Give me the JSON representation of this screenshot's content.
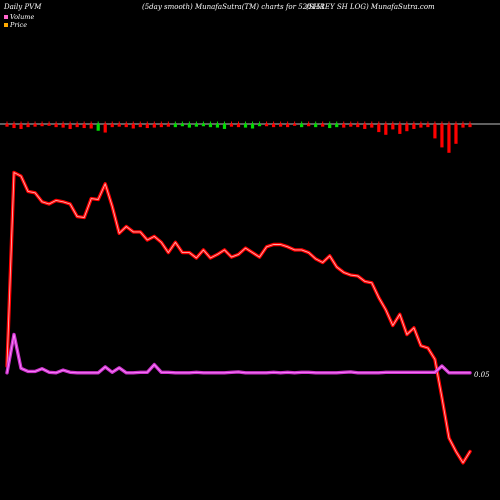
{
  "header": {
    "left": "Daily PVM",
    "center": "(5day smooth) MunafaSutra(TM) charts for 520151",
    "right": "(SHREY SH LOG) MunafaSutra.com"
  },
  "legend": [
    {
      "label": "Volume",
      "color": "#ff66cc"
    },
    {
      "label": "Price",
      "color": "#ffaa00"
    }
  ],
  "colors": {
    "background": "#000000",
    "price_line": "#ff0000",
    "price_glow": "#ffaaaa",
    "pvm_line": "#cc33cc",
    "pvm_glow": "#ff88ff",
    "volume_down": "#ff0000",
    "volume_up": "#00dd00",
    "baseline": "#ffffff"
  },
  "chart_data": {
    "type": "line",
    "x_count": 67,
    "price_label": "0.05",
    "series": [
      {
        "values": [
          2.0,
          45.0,
          44.2,
          40.8,
          40.5,
          38.5,
          38.0,
          38.8,
          38.5,
          38.0,
          35.2,
          35.0,
          39.2,
          39.0,
          42.5,
          37.5,
          31.5,
          33.0,
          31.8,
          31.8,
          30.0,
          30.8,
          29.5,
          27.2,
          29.5,
          27.2,
          27.2,
          26.0,
          27.8,
          26.0,
          26.8,
          27.8,
          26.2,
          26.8,
          28.2,
          27.2,
          26.2,
          28.5,
          29.0,
          29.0,
          28.5,
          27.8,
          27.8,
          27.2,
          25.8,
          25.0,
          26.5,
          24.0,
          22.8,
          22.2,
          22.0,
          20.8,
          20.5,
          17.2,
          14.5,
          11.0,
          13.5,
          9.0,
          10.5,
          6.5,
          6.0,
          3.5,
          -5.0,
          -14.0,
          -17.0,
          -19.5,
          -17.0
        ]
      },
      {
        "values": [
          0.5,
          9.0,
          1.5,
          0.8,
          0.8,
          1.4,
          0.6,
          0.5,
          1.1,
          0.6,
          0.5,
          0.5,
          0.5,
          0.5,
          1.8,
          0.6,
          1.6,
          0.5,
          0.5,
          0.6,
          0.6,
          2.3,
          0.6,
          0.6,
          0.5,
          0.5,
          0.5,
          0.6,
          0.5,
          0.5,
          0.5,
          0.5,
          0.6,
          0.7,
          0.5,
          0.5,
          0.5,
          0.5,
          0.6,
          0.5,
          0.6,
          0.5,
          0.6,
          0.6,
          0.5,
          0.5,
          0.5,
          0.5,
          0.6,
          0.7,
          0.5,
          0.5,
          0.5,
          0.5,
          0.6,
          0.6,
          0.6,
          0.6,
          0.6,
          0.6,
          0.6,
          0.6,
          2.0,
          0.5,
          0.5,
          0.5,
          0.5
        ]
      }
    ],
    "volume_bars": [
      {
        "v": 3.0,
        "dir": "down"
      },
      {
        "v": 4.5,
        "dir": "down"
      },
      {
        "v": 5.5,
        "dir": "down"
      },
      {
        "v": 3.5,
        "dir": "down"
      },
      {
        "v": 3.0,
        "dir": "down"
      },
      {
        "v": 2.5,
        "dir": "down"
      },
      {
        "v": 2.0,
        "dir": "down"
      },
      {
        "v": 3.5,
        "dir": "down"
      },
      {
        "v": 4.0,
        "dir": "down"
      },
      {
        "v": 5.5,
        "dir": "down"
      },
      {
        "v": 3.5,
        "dir": "down"
      },
      {
        "v": 4.5,
        "dir": "down"
      },
      {
        "v": 5.0,
        "dir": "down"
      },
      {
        "v": 7.5,
        "dir": "up"
      },
      {
        "v": 9.5,
        "dir": "down"
      },
      {
        "v": 3.5,
        "dir": "down"
      },
      {
        "v": 3.0,
        "dir": "down"
      },
      {
        "v": 3.5,
        "dir": "down"
      },
      {
        "v": 5.0,
        "dir": "down"
      },
      {
        "v": 3.5,
        "dir": "down"
      },
      {
        "v": 4.5,
        "dir": "down"
      },
      {
        "v": 4.0,
        "dir": "down"
      },
      {
        "v": 3.5,
        "dir": "down"
      },
      {
        "v": 3.0,
        "dir": "down"
      },
      {
        "v": 3.5,
        "dir": "up"
      },
      {
        "v": 2.5,
        "dir": "up"
      },
      {
        "v": 4.0,
        "dir": "up"
      },
      {
        "v": 3.0,
        "dir": "up"
      },
      {
        "v": 2.5,
        "dir": "up"
      },
      {
        "v": 3.5,
        "dir": "up"
      },
      {
        "v": 4.0,
        "dir": "up"
      },
      {
        "v": 5.5,
        "dir": "up"
      },
      {
        "v": 3.0,
        "dir": "down"
      },
      {
        "v": 3.5,
        "dir": "down"
      },
      {
        "v": 4.0,
        "dir": "up"
      },
      {
        "v": 5.0,
        "dir": "up"
      },
      {
        "v": 2.5,
        "dir": "up"
      },
      {
        "v": 2.5,
        "dir": "down"
      },
      {
        "v": 3.5,
        "dir": "down"
      },
      {
        "v": 3.0,
        "dir": "down"
      },
      {
        "v": 3.5,
        "dir": "down"
      },
      {
        "v": 2.0,
        "dir": "down"
      },
      {
        "v": 3.5,
        "dir": "up"
      },
      {
        "v": 2.5,
        "dir": "down"
      },
      {
        "v": 3.5,
        "dir": "up"
      },
      {
        "v": 3.0,
        "dir": "down"
      },
      {
        "v": 4.5,
        "dir": "up"
      },
      {
        "v": 3.5,
        "dir": "up"
      },
      {
        "v": 4.0,
        "dir": "down"
      },
      {
        "v": 3.0,
        "dir": "down"
      },
      {
        "v": 3.5,
        "dir": "down"
      },
      {
        "v": 5.5,
        "dir": "down"
      },
      {
        "v": 4.0,
        "dir": "down"
      },
      {
        "v": 9.0,
        "dir": "down"
      },
      {
        "v": 12.0,
        "dir": "down"
      },
      {
        "v": 6.0,
        "dir": "down"
      },
      {
        "v": 11.0,
        "dir": "down"
      },
      {
        "v": 8.0,
        "dir": "down"
      },
      {
        "v": 5.5,
        "dir": "down"
      },
      {
        "v": 4.0,
        "dir": "down"
      },
      {
        "v": 3.5,
        "dir": "down"
      },
      {
        "v": 16.0,
        "dir": "down"
      },
      {
        "v": 26.0,
        "dir": "down"
      },
      {
        "v": 32.0,
        "dir": "down"
      },
      {
        "v": 22.0,
        "dir": "down"
      },
      {
        "v": 4.0,
        "dir": "down"
      },
      {
        "v": 3.5,
        "dir": "down"
      }
    ]
  }
}
